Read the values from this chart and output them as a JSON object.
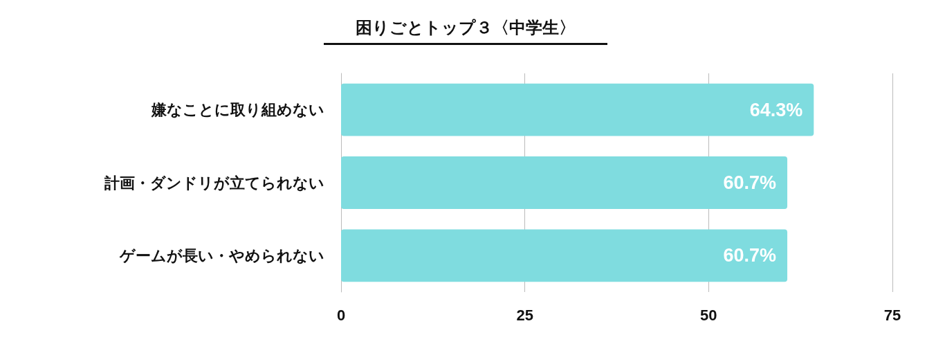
{
  "chart_data": {
    "type": "bar",
    "orientation": "horizontal",
    "title": "困りごとトップ３〈中学生〉",
    "categories": [
      "嫌なことに取り組めない",
      "計画・ダンドリが立てられない",
      "ゲームが長い・やめられない"
    ],
    "values": [
      64.3,
      60.7,
      60.7
    ],
    "value_labels": [
      "64.3%",
      "60.7%",
      "60.7%"
    ],
    "color": "#7fdcdf",
    "xlim": [
      0,
      75
    ],
    "xticks": [
      0,
      25,
      50,
      75
    ],
    "grid": "x"
  }
}
